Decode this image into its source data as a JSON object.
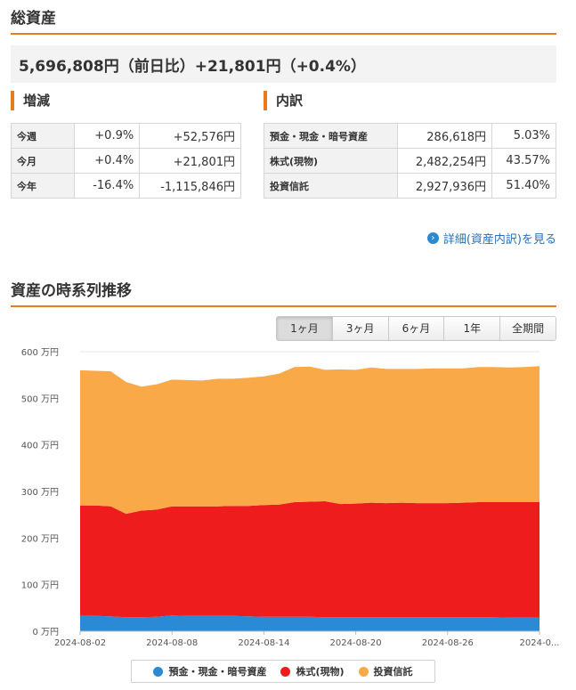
{
  "total": {
    "title": "総資産",
    "amount": "5,696,808円",
    "change_label": "（前日比）",
    "change_value": "+21,801円（+0.4%）"
  },
  "change": {
    "title": "増減",
    "rows": [
      {
        "label": "今週",
        "pct": "+0.9%",
        "amount": "+52,576円"
      },
      {
        "label": "今月",
        "pct": "+0.4%",
        "amount": "+21,801円"
      },
      {
        "label": "今年",
        "pct": "-16.4%",
        "amount": "-1,115,846円"
      }
    ]
  },
  "breakdown": {
    "title": "内訳",
    "rows": [
      {
        "label": "預金・現金・暗号資産",
        "amount": "286,618円",
        "pct": "5.03%"
      },
      {
        "label": "株式(現物)",
        "amount": "2,482,254円",
        "pct": "43.57%"
      },
      {
        "label": "投資信託",
        "amount": "2,927,936円",
        "pct": "51.40%"
      }
    ]
  },
  "detail_link": {
    "icon": "arrow-circle-right-icon",
    "text": "詳細(資産内訳)を見る"
  },
  "history": {
    "title": "資産の時系列推移",
    "tabs": [
      "1ヶ月",
      "3ヶ月",
      "6ヶ月",
      "1年",
      "全期間"
    ],
    "active_tab": 0
  },
  "chart_data": {
    "type": "area",
    "stacked": true,
    "y_unit": "万円",
    "ylim": [
      0,
      600
    ],
    "y_ticks": [
      0,
      100,
      200,
      300,
      400,
      500,
      600
    ],
    "y_tick_labels": [
      "0 万円",
      "100 万円",
      "200 万円",
      "300 万円",
      "400 万円",
      "500 万円",
      "600 万円"
    ],
    "x": [
      "2024-08-02",
      "2024-08-03",
      "2024-08-04",
      "2024-08-05",
      "2024-08-06",
      "2024-08-07",
      "2024-08-08",
      "2024-08-09",
      "2024-08-10",
      "2024-08-11",
      "2024-08-12",
      "2024-08-13",
      "2024-08-14",
      "2024-08-15",
      "2024-08-16",
      "2024-08-17",
      "2024-08-18",
      "2024-08-19",
      "2024-08-20",
      "2024-08-21",
      "2024-08-22",
      "2024-08-23",
      "2024-08-24",
      "2024-08-25",
      "2024-08-26",
      "2024-08-27",
      "2024-08-28",
      "2024-08-29",
      "2024-08-30",
      "2024-08-31",
      "2024-09-01"
    ],
    "x_tick_labels": [
      "2024-08-02",
      "2024-08-08",
      "2024-08-14",
      "2024-08-20",
      "2024-08-26",
      "2024-0..."
    ],
    "x_tick_indices": [
      0,
      6,
      12,
      18,
      24,
      30
    ],
    "legend_position": "bottom",
    "grid": true,
    "series": [
      {
        "name": "預金・現金・暗号資産",
        "color": "#2a8ad6",
        "values": [
          33,
          33,
          32,
          30,
          30,
          31,
          34,
          33,
          33,
          33,
          33,
          32,
          31,
          31,
          31,
          31,
          30,
          30,
          30,
          30,
          30,
          30,
          30,
          30,
          30,
          30,
          30,
          30,
          29,
          29,
          29
        ]
      },
      {
        "name": "株式(現物)",
        "color": "#ee1c1c",
        "values": [
          237,
          237,
          236,
          222,
          229,
          230,
          234,
          235,
          235,
          235,
          236,
          237,
          240,
          241,
          246,
          247,
          249,
          243,
          244,
          246,
          245,
          246,
          245,
          245,
          245,
          246,
          247,
          247,
          248,
          248,
          248
        ]
      },
      {
        "name": "投資信託",
        "color": "#f9a948",
        "values": [
          290,
          289,
          290,
          283,
          266,
          269,
          272,
          271,
          270,
          274,
          273,
          275,
          276,
          281,
          290,
          290,
          282,
          289,
          287,
          290,
          288,
          287,
          288,
          289,
          289,
          288,
          290,
          290,
          289,
          290,
          292
        ]
      }
    ]
  }
}
